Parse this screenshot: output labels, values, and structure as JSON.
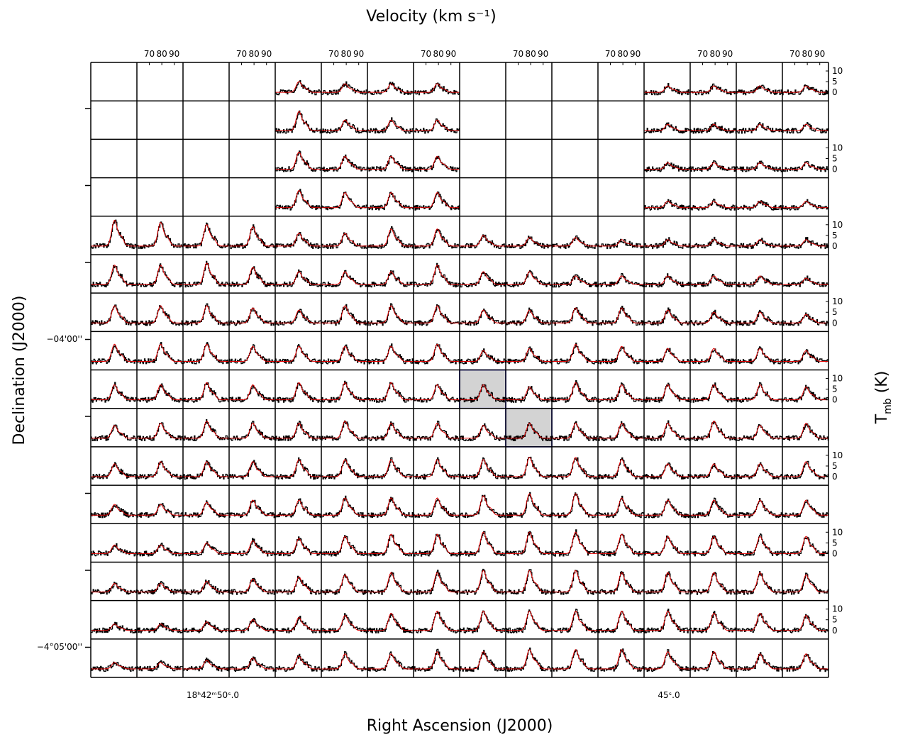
{
  "chart_data": {
    "type": "spectral-grid",
    "title": "Velocity (km s⁻¹)",
    "x_axis_label": "Right Ascension (J2000)",
    "y_axis_label": "Declination (J2000)",
    "y2_axis_label": {
      "main": "T",
      "sub": "mb",
      "rest": " (K)"
    },
    "x_labels": [
      "18ʰ42ᵐ50ˢ.0",
      "45ˢ.0"
    ],
    "y_labels": [
      "−04'00''",
      "−4°05'00''"
    ],
    "xlim": [
      60,
      97
    ],
    "xticks": [
      70,
      80,
      90
    ],
    "ylim": [
      -4,
      14
    ],
    "yticks": [
      0,
      5,
      10
    ],
    "data_color": "#000000",
    "fit_color": "#e00000",
    "highlight_color": "#d3d3d3",
    "highlight_border": "#0000ff",
    "highlighted_panels": [
      [
        8,
        8
      ],
      [
        9,
        9
      ]
    ],
    "peaks": [
      [
        null,
        null,
        null,
        null,
        5,
        4,
        4,
        4,
        null,
        null,
        null,
        null,
        3,
        3,
        3,
        3
      ],
      [
        null,
        null,
        null,
        null,
        9,
        5,
        5,
        5,
        null,
        null,
        null,
        null,
        3,
        3,
        3,
        3
      ],
      [
        null,
        null,
        null,
        null,
        8,
        6,
        6,
        6,
        null,
        null,
        null,
        null,
        3,
        3,
        3,
        3
      ],
      [
        null,
        null,
        null,
        null,
        8,
        7,
        7,
        7,
        null,
        null,
        null,
        null,
        3,
        3,
        3,
        3
      ],
      [
        12,
        11,
        10,
        9,
        6,
        6,
        8,
        8,
        5,
        4,
        4,
        3,
        3,
        3,
        3,
        3
      ],
      [
        9,
        9,
        10,
        8,
        6,
        6,
        6,
        9,
        6,
        6,
        4,
        4,
        4,
        4,
        4,
        3
      ],
      [
        8,
        8,
        8,
        7,
        6,
        8,
        8,
        8,
        6,
        6,
        7,
        7,
        6,
        5,
        5,
        4
      ],
      [
        8,
        8,
        8,
        7,
        7,
        7,
        7,
        8,
        5,
        6,
        8,
        7,
        6,
        6,
        6,
        5
      ],
      [
        7,
        7,
        8,
        7,
        8,
        8,
        8,
        7,
        7,
        6,
        8,
        7,
        7,
        7,
        7,
        6
      ],
      [
        6,
        7,
        8,
        7,
        7,
        8,
        7,
        7,
        6,
        7,
        7,
        7,
        7,
        8,
        6,
        7
      ],
      [
        6,
        7,
        7,
        7,
        8,
        8,
        8,
        8,
        8,
        9,
        9,
        8,
        6,
        6,
        6,
        7
      ],
      [
        5,
        5,
        6,
        7,
        7,
        8,
        8,
        8,
        9,
        10,
        10,
        8,
        7,
        7,
        7,
        7
      ],
      [
        4,
        4,
        5,
        6,
        7,
        8,
        9,
        9,
        10,
        10,
        10,
        9,
        8,
        8,
        8,
        8
      ],
      [
        4,
        4,
        5,
        6,
        7,
        8,
        9,
        9,
        10,
        10,
        10,
        9,
        9,
        9,
        9,
        8
      ],
      [
        3,
        3,
        4,
        5,
        6,
        7,
        8,
        9,
        9,
        9,
        9,
        9,
        9,
        8,
        8,
        7
      ],
      [
        3,
        3,
        4,
        5,
        6,
        7,
        7,
        8,
        8,
        9,
        9,
        9,
        8,
        8,
        7,
        7
      ]
    ]
  }
}
